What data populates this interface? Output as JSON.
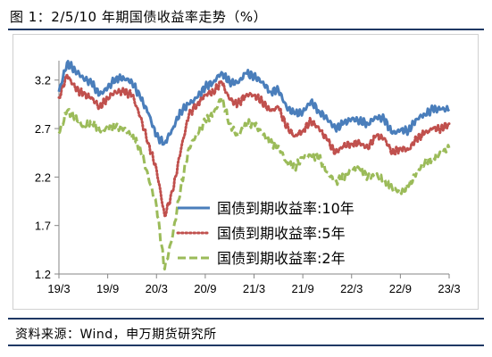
{
  "title": "图 1：2/5/10 年期国债收益率走势（%）",
  "source": "资料来源：Wind，申万期货研究所",
  "colors": {
    "ten_year": "#4a7ebb",
    "five_year": "#c0504d",
    "two_year": "#9bbb59",
    "frame": "#1f3864"
  },
  "chart_data": {
    "type": "line",
    "title": "",
    "xlabel": "",
    "ylabel": "",
    "x_tick_labels": [
      "19/3",
      "19/9",
      "20/3",
      "20/9",
      "21/3",
      "21/9",
      "22/3",
      "22/9",
      "23/3"
    ],
    "xlim": [
      "2019-03",
      "2023-03"
    ],
    "ylim": [
      1.2,
      3.4
    ],
    "y_ticks": [
      1.2,
      1.7,
      2.2,
      2.7,
      3.2
    ],
    "grid": false,
    "legend_position": "center-right",
    "series": [
      {
        "name": "国债到期收益率:10年",
        "style": "solid",
        "color": "#4a7ebb",
        "x": [
          "2019-03",
          "2019-04",
          "2019-05",
          "2019-06",
          "2019-07",
          "2019-08",
          "2019-09",
          "2019-10",
          "2019-11",
          "2019-12",
          "2020-01",
          "2020-02",
          "2020-03",
          "2020-04",
          "2020-05",
          "2020-06",
          "2020-07",
          "2020-08",
          "2020-09",
          "2020-10",
          "2020-11",
          "2020-12",
          "2021-01",
          "2021-02",
          "2021-03",
          "2021-04",
          "2021-05",
          "2021-06",
          "2021-07",
          "2021-08",
          "2021-09",
          "2021-10",
          "2021-11",
          "2021-12",
          "2022-01",
          "2022-02",
          "2022-03",
          "2022-04",
          "2022-05",
          "2022-06",
          "2022-07",
          "2022-08",
          "2022-09",
          "2022-10",
          "2022-11",
          "2022-12",
          "2023-01",
          "2023-02",
          "2023-03"
        ],
        "values": [
          3.08,
          3.38,
          3.3,
          3.22,
          3.17,
          3.05,
          3.12,
          3.22,
          3.22,
          3.18,
          3.02,
          2.86,
          2.62,
          2.55,
          2.7,
          2.88,
          2.95,
          3.02,
          3.13,
          3.18,
          3.28,
          3.18,
          3.17,
          3.27,
          3.24,
          3.18,
          3.08,
          3.1,
          2.92,
          2.85,
          2.87,
          2.98,
          2.88,
          2.8,
          2.7,
          2.75,
          2.8,
          2.78,
          2.75,
          2.82,
          2.8,
          2.65,
          2.68,
          2.68,
          2.8,
          2.85,
          2.9,
          2.9,
          2.9
        ]
      },
      {
        "name": "国债到期收益率:5年",
        "style": "dotted",
        "color": "#c0504d",
        "x": [
          "2019-03",
          "2019-04",
          "2019-05",
          "2019-06",
          "2019-07",
          "2019-08",
          "2019-09",
          "2019-10",
          "2019-11",
          "2019-12",
          "2020-01",
          "2020-02",
          "2020-03",
          "2020-04",
          "2020-05",
          "2020-06",
          "2020-07",
          "2020-08",
          "2020-09",
          "2020-10",
          "2020-11",
          "2020-12",
          "2021-01",
          "2021-02",
          "2021-03",
          "2021-04",
          "2021-05",
          "2021-06",
          "2021-07",
          "2021-08",
          "2021-09",
          "2021-10",
          "2021-11",
          "2021-12",
          "2022-01",
          "2022-02",
          "2022-03",
          "2022-04",
          "2022-05",
          "2022-06",
          "2022-07",
          "2022-08",
          "2022-09",
          "2022-10",
          "2022-11",
          "2022-12",
          "2023-01",
          "2023-02",
          "2023-03"
        ],
        "values": [
          3.02,
          3.25,
          3.12,
          3.05,
          3.02,
          2.92,
          3.02,
          3.08,
          3.08,
          3.05,
          2.82,
          2.55,
          2.28,
          1.8,
          2.05,
          2.48,
          2.85,
          2.95,
          3.05,
          3.08,
          3.18,
          3.0,
          2.95,
          3.05,
          3.05,
          2.98,
          2.88,
          2.92,
          2.72,
          2.62,
          2.68,
          2.78,
          2.7,
          2.58,
          2.45,
          2.52,
          2.55,
          2.55,
          2.5,
          2.62,
          2.6,
          2.45,
          2.5,
          2.48,
          2.6,
          2.65,
          2.7,
          2.7,
          2.75
        ]
      },
      {
        "name": "国债到期收益率:2年",
        "style": "dashed",
        "color": "#9bbb59",
        "x": [
          "2019-03",
          "2019-04",
          "2019-05",
          "2019-06",
          "2019-07",
          "2019-08",
          "2019-09",
          "2019-10",
          "2019-11",
          "2019-12",
          "2020-01",
          "2020-02",
          "2020-03",
          "2020-04",
          "2020-05",
          "2020-06",
          "2020-07",
          "2020-08",
          "2020-09",
          "2020-10",
          "2020-11",
          "2020-12",
          "2021-01",
          "2021-02",
          "2021-03",
          "2021-04",
          "2021-05",
          "2021-06",
          "2021-07",
          "2021-08",
          "2021-09",
          "2021-10",
          "2021-11",
          "2021-12",
          "2022-01",
          "2022-02",
          "2022-03",
          "2022-04",
          "2022-05",
          "2022-06",
          "2022-07",
          "2022-08",
          "2022-09",
          "2022-10",
          "2022-11",
          "2022-12",
          "2023-01",
          "2023-02",
          "2023-03"
        ],
        "values": [
          2.65,
          2.88,
          2.82,
          2.72,
          2.78,
          2.68,
          2.7,
          2.72,
          2.7,
          2.62,
          2.5,
          2.2,
          1.9,
          1.25,
          1.6,
          2.1,
          2.5,
          2.65,
          2.78,
          2.85,
          3.02,
          2.75,
          2.62,
          2.75,
          2.75,
          2.65,
          2.55,
          2.52,
          2.35,
          2.3,
          2.4,
          2.42,
          2.4,
          2.25,
          2.15,
          2.2,
          2.28,
          2.28,
          2.2,
          2.22,
          2.18,
          2.08,
          2.05,
          2.1,
          2.25,
          2.35,
          2.4,
          2.45,
          2.5
        ]
      }
    ]
  }
}
